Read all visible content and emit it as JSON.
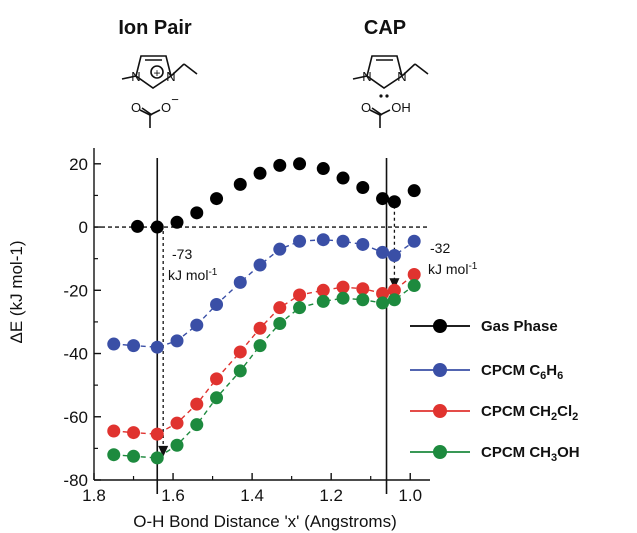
{
  "headers": {
    "left": "Ion Pair",
    "right": "CAP"
  },
  "structures": {
    "ion_pair": {
      "n1": "N",
      "n2": "N",
      "charge": "+",
      "acid_o1": "O",
      "acid_o2": "O",
      "acid_charge": "−"
    },
    "cap": {
      "n1": "N",
      "n2": "N",
      "acid_o1": "O",
      "acid_o2": "OH"
    }
  },
  "annotations": {
    "left_value": "-73",
    "left_unit": "kJ mol",
    "left_unit_sup": "-1",
    "right_value": "-32",
    "right_unit": "kJ mol",
    "right_unit_sup": "-1"
  },
  "legend_labels": [
    {
      "main": "Gas Phase",
      "sub1": "",
      "mid": "",
      "sub2": "",
      "end": ""
    },
    {
      "main": "CPCM C",
      "sub1": "6",
      "mid": "H",
      "sub2": "6",
      "end": ""
    },
    {
      "main": "CPCM CH",
      "sub1": "2",
      "mid": "Cl",
      "sub2": "2",
      "end": ""
    },
    {
      "main": "CPCM CH",
      "sub1": "3",
      "mid": "OH",
      "sub2": "",
      "end": ""
    }
  ],
  "chart_data": {
    "type": "scatter",
    "xlabel": "O-H Bond Distance 'x' (Angstroms)",
    "ylabel": "ΔE (kJ mol-1)",
    "xlim": [
      1.8,
      0.95
    ],
    "ylim": [
      -80,
      25
    ],
    "x_ticks": [
      "1.8",
      "1.6",
      "1.4",
      "1.2",
      "1.0"
    ],
    "y_ticks": [
      "20",
      "0",
      "-20",
      "-40",
      "-60",
      "-80"
    ],
    "x_tick_values": [
      1.8,
      1.6,
      1.4,
      1.2,
      1.0
    ],
    "y_tick_values": [
      20,
      0,
      -20,
      -40,
      -60,
      -80
    ],
    "minor_x": [
      1.7,
      1.5,
      1.3,
      1.1
    ],
    "minor_y": [
      10,
      -10,
      -30,
      -50,
      -70
    ],
    "zero_line": 0,
    "vertical_lines": [
      1.64,
      1.06
    ],
    "arrows": [
      {
        "x": 1.625,
        "from": 0,
        "to": -73
      },
      {
        "x": 1.04,
        "from": 8,
        "to": -20
      }
    ],
    "legend_position": "right",
    "series": [
      {
        "name": "Gas Phase",
        "color": "#000000",
        "connect": false,
        "points": [
          [
            1.69,
            0.2
          ],
          [
            1.64,
            0
          ],
          [
            1.59,
            1.5
          ],
          [
            1.54,
            4.5
          ],
          [
            1.49,
            9
          ],
          [
            1.43,
            13.5
          ],
          [
            1.38,
            17
          ],
          [
            1.33,
            19.5
          ],
          [
            1.28,
            20
          ],
          [
            1.22,
            18.5
          ],
          [
            1.17,
            15.5
          ],
          [
            1.12,
            12.5
          ],
          [
            1.07,
            9
          ],
          [
            1.04,
            8
          ],
          [
            0.99,
            11.5
          ]
        ]
      },
      {
        "name": "CPCM C6H6",
        "color": "#3a4fa6",
        "connect": true,
        "points": [
          [
            1.75,
            -37
          ],
          [
            1.7,
            -37.5
          ],
          [
            1.64,
            -38
          ],
          [
            1.59,
            -36
          ],
          [
            1.54,
            -31
          ],
          [
            1.49,
            -24.5
          ],
          [
            1.43,
            -17.5
          ],
          [
            1.38,
            -12
          ],
          [
            1.33,
            -7
          ],
          [
            1.28,
            -4.5
          ],
          [
            1.22,
            -4
          ],
          [
            1.17,
            -4.5
          ],
          [
            1.12,
            -5.5
          ],
          [
            1.07,
            -8
          ],
          [
            1.04,
            -9
          ],
          [
            0.99,
            -4.5
          ]
        ]
      },
      {
        "name": "CPCM CH2Cl2",
        "color": "#e0332f",
        "connect": true,
        "points": [
          [
            1.75,
            -64.5
          ],
          [
            1.7,
            -65
          ],
          [
            1.64,
            -65.5
          ],
          [
            1.59,
            -62
          ],
          [
            1.54,
            -56
          ],
          [
            1.49,
            -48
          ],
          [
            1.43,
            -39.5
          ],
          [
            1.38,
            -32
          ],
          [
            1.33,
            -25.5
          ],
          [
            1.28,
            -21.5
          ],
          [
            1.22,
            -20
          ],
          [
            1.17,
            -19
          ],
          [
            1.12,
            -19.5
          ],
          [
            1.07,
            -21
          ],
          [
            1.04,
            -20
          ],
          [
            0.99,
            -15
          ]
        ]
      },
      {
        "name": "CPCM CH3OH",
        "color": "#1d8a3e",
        "connect": true,
        "points": [
          [
            1.75,
            -72
          ],
          [
            1.7,
            -72.5
          ],
          [
            1.64,
            -73
          ],
          [
            1.59,
            -69
          ],
          [
            1.54,
            -62.5
          ],
          [
            1.49,
            -54
          ],
          [
            1.43,
            -45.5
          ],
          [
            1.38,
            -37.5
          ],
          [
            1.33,
            -30.5
          ],
          [
            1.28,
            -25.5
          ],
          [
            1.22,
            -23.5
          ],
          [
            1.17,
            -22.5
          ],
          [
            1.12,
            -23
          ],
          [
            1.07,
            -24
          ],
          [
            1.04,
            -23
          ],
          [
            0.99,
            -18.5
          ]
        ]
      }
    ]
  }
}
